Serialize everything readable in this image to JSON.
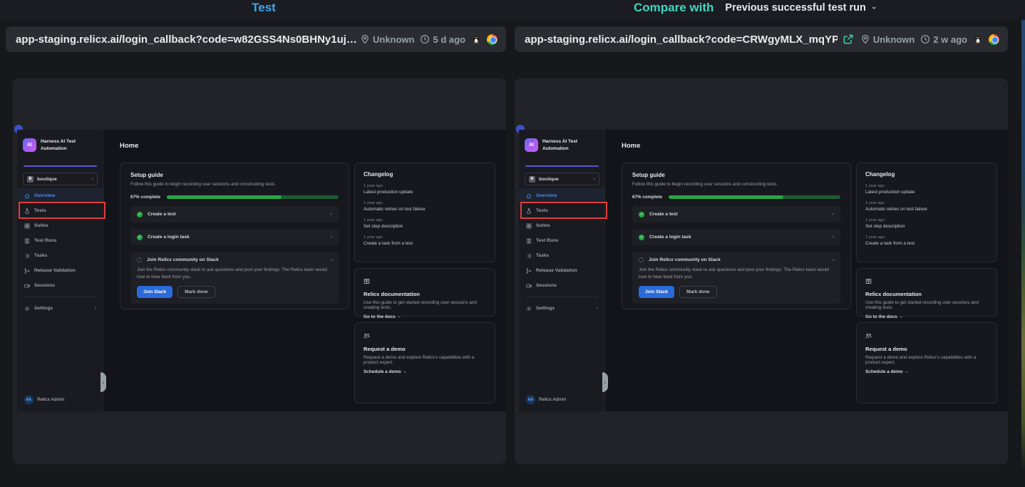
{
  "header": {
    "left_title": "Test",
    "compare_label": "Compare with",
    "compare_value": "Previous successful test run"
  },
  "runs": {
    "left": {
      "url": "app-staging.relicx.ai/login_callback?code=w82GSS4Ns0BHNy1uj…",
      "location": "Unknown",
      "age": "5 d ago"
    },
    "right": {
      "url": "app-staging.relicx.ai/login_callback?code=CRWgyMLX_mqYPe…",
      "location": "Unknown",
      "age": "2 w ago"
    }
  },
  "colors": {
    "left_accent": "#3aa8f0",
    "right_accent": "#3fd6c1",
    "highlight_box": "#e23c3c",
    "progress_green": "#27a746",
    "primary_button_blue": "#2b6bd9",
    "active_nav_blue": "#4d8df5"
  },
  "app": {
    "brand": "Harness AI Test Automation",
    "project": {
      "badge": "B",
      "name": "boutique"
    },
    "nav": [
      {
        "label": "Overview"
      },
      {
        "label": "Tests"
      },
      {
        "label": "Suites"
      },
      {
        "label": "Test Runs"
      },
      {
        "label": "Tasks"
      },
      {
        "label": "Release Validation"
      },
      {
        "label": "Sessions"
      }
    ],
    "settings_label": "Settings",
    "user": {
      "initials": "RA",
      "name": "Relicx Admin"
    },
    "page_title": "Home",
    "setup_guide": {
      "title": "Setup guide",
      "subtitle": "Follow this guide to begin recording user sessions and constructing tests.",
      "progress_label": "67% complete",
      "progress_pct": 67,
      "items": [
        {
          "label": "Create a test"
        },
        {
          "label": "Create a login task"
        }
      ],
      "slack": {
        "label": "Join Relicx community on Slack",
        "description": "Join the Relicx community slack to ask questions and post your findings. The Relicx team would love to hear back from you.",
        "join_label": "Join Slack",
        "mark_done_label": "Mark done"
      }
    },
    "changelog": {
      "title": "Changelog",
      "entries": [
        {
          "time": "1 year ago",
          "text": "Latest production update"
        },
        {
          "time": "1 year ago",
          "text": "Automatic retries on test failure"
        },
        {
          "time": "1 year ago",
          "text": "Set step description"
        },
        {
          "time": "1 year ago",
          "text": "Create a task from a test"
        }
      ]
    },
    "docs_card": {
      "title": "Relicx documentation",
      "description": "Use this guide to get started recording user sessions and creating tests.",
      "link": "Go to the docs →"
    },
    "demo_card": {
      "title": "Request a demo",
      "description": "Request a demo and explore Relicx's capabilities with a product expert.",
      "link": "Schedule a demo →"
    }
  }
}
